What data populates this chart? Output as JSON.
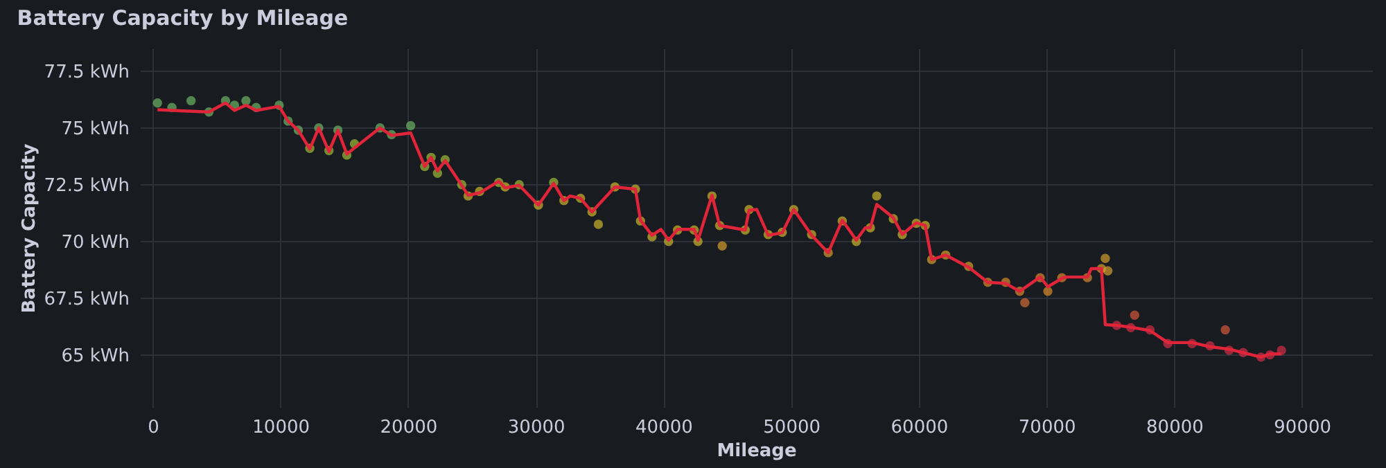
{
  "chart_data": {
    "type": "scatter",
    "title": "Battery Capacity by Mileage",
    "xlabel": "Mileage",
    "ylabel": "Battery Capacity",
    "xlim": [
      -1000,
      95500
    ],
    "ylim": [
      62.7,
      78.5
    ],
    "xticks": [
      0,
      10000,
      20000,
      30000,
      40000,
      50000,
      60000,
      70000,
      80000,
      90000
    ],
    "yticks": [
      {
        "value": 65,
        "label": "65 kWh"
      },
      {
        "value": 67.5,
        "label": "67.5 kWh"
      },
      {
        "value": 70,
        "label": "70 kWh"
      },
      {
        "value": 72.5,
        "label": "72.5 kWh"
      },
      {
        "value": 75,
        "label": "75 kWh"
      },
      {
        "value": 77.5,
        "label": "77.5 kWh"
      }
    ],
    "grid": true,
    "series": [
      {
        "marker": "circle",
        "x": [
          370,
          1500,
          3000,
          4400,
          5700,
          6400,
          7300,
          8100,
          9900,
          10600,
          11400,
          12300,
          13000,
          13800,
          14500,
          15200,
          15800,
          17800,
          18700,
          20200,
          21300,
          21800,
          22300,
          22900,
          24200,
          24700,
          25600,
          27100,
          27600,
          28700,
          30200,
          31400,
          32200,
          33500,
          34400,
          34900,
          36200,
          37800,
          38200,
          39100,
          40400,
          41100,
          42400,
          42700,
          43800,
          44400,
          44600,
          46400,
          46700,
          48200,
          49300,
          50200,
          51600,
          52900,
          54000,
          55100,
          56200,
          56700,
          58000,
          58700,
          59800,
          60500,
          61000,
          62100,
          63900,
          65400,
          66800,
          67900,
          68300,
          69500,
          70100,
          71200,
          73200,
          74300,
          74800,
          74600,
          75500,
          76600,
          76900,
          78100,
          79500,
          81400,
          82800,
          84000,
          84300,
          85400,
          86800,
          87500,
          88400
        ],
        "values": [
          76.1,
          75.9,
          76.2,
          75.7,
          76.2,
          76.0,
          76.2,
          75.9,
          76.0,
          75.3,
          74.9,
          74.1,
          75.0,
          74.0,
          74.9,
          73.8,
          74.3,
          75.0,
          74.7,
          75.1,
          73.3,
          73.7,
          73.0,
          73.6,
          72.5,
          72.0,
          72.2,
          72.6,
          72.4,
          72.5,
          71.6,
          72.6,
          71.8,
          71.9,
          71.3,
          70.75,
          72.4,
          72.3,
          70.9,
          70.2,
          70.0,
          70.5,
          70.5,
          70.0,
          72.0,
          70.7,
          69.8,
          70.5,
          71.4,
          70.3,
          70.4,
          71.4,
          70.3,
          69.5,
          70.9,
          70.0,
          70.6,
          72.0,
          71.0,
          70.3,
          70.8,
          70.7,
          69.2,
          69.4,
          68.9,
          68.2,
          68.2,
          67.8,
          67.3,
          68.4,
          67.8,
          68.4,
          68.4,
          68.8,
          68.7,
          69.25,
          66.3,
          66.2,
          66.75,
          66.1,
          65.5,
          65.5,
          65.4,
          66.1,
          65.2,
          65.1,
          64.9,
          65.0,
          65.2
        ],
        "colors": [
          "#73bf69",
          "#73bf69",
          "#73bf69",
          "#73bf69",
          "#73bf69",
          "#73bf69",
          "#73bf69",
          "#73bf69",
          "#73bf69",
          "#73bf69",
          "#73bf69",
          "#a8c83a",
          "#73bf69",
          "#a8c83a",
          "#73bf69",
          "#a8c83a",
          "#a8c83a",
          "#73bf69",
          "#73bf69",
          "#73bf69",
          "#a8c83a",
          "#a8c83a",
          "#a8c83a",
          "#a8c83a",
          "#a8c83a",
          "#d8c02e",
          "#d8c02e",
          "#a8c83a",
          "#d8c02e",
          "#a8c83a",
          "#d8c02e",
          "#a8c83a",
          "#d8c02e",
          "#d8c02e",
          "#d8c02e",
          "#d8c02e",
          "#d8c02e",
          "#d8c02e",
          "#d8c02e",
          "#d8c02e",
          "#d8c02e",
          "#d8c02e",
          "#d8c02e",
          "#d8c02e",
          "#d8c02e",
          "#d8c02e",
          "#e0a72e",
          "#d8c02e",
          "#d8c02e",
          "#d8c02e",
          "#d8c02e",
          "#d8c02e",
          "#d8c02e",
          "#e0a72e",
          "#d8c02e",
          "#d8c02e",
          "#d8c02e",
          "#d8c02e",
          "#d8c02e",
          "#d8c02e",
          "#d8c02e",
          "#d8c02e",
          "#e0a72e",
          "#e0a72e",
          "#e0a72e",
          "#e8902e",
          "#e8902e",
          "#e8902e",
          "#e0703a",
          "#e8902e",
          "#e8902e",
          "#e8902e",
          "#e8902e",
          "#e0a72e",
          "#e0a72e",
          "#e0a72e",
          "#e0304a",
          "#e0304a",
          "#e05a3c",
          "#e0304a",
          "#e0304a",
          "#e0304a",
          "#e0304a",
          "#e05a3c",
          "#e0304a",
          "#e0304a",
          "#e0304a",
          "#e0304a",
          "#e0304a"
        ]
      },
      {
        "type": "line",
        "color": "#e0253a",
        "line_style": "solid",
        "x": [
          370,
          4400,
          5700,
          6400,
          7300,
          8100,
          9900,
          10600,
          11400,
          12300,
          13000,
          13800,
          14500,
          15200,
          17800,
          18700,
          20200,
          21300,
          21800,
          22300,
          22900,
          24200,
          24700,
          25600,
          27100,
          27600,
          28700,
          30200,
          31400,
          32200,
          32700,
          33500,
          34400,
          36200,
          37800,
          38200,
          39100,
          39800,
          40400,
          41100,
          42400,
          42700,
          43800,
          44400,
          46400,
          46700,
          47300,
          48200,
          49300,
          50200,
          51600,
          52900,
          54000,
          54700,
          55100,
          55800,
          56200,
          56700,
          58000,
          58700,
          59800,
          60500,
          61000,
          62100,
          63900,
          65400,
          66800,
          67900,
          69500,
          70100,
          71200,
          71500,
          73200,
          73500,
          74300,
          74600,
          75500,
          76600,
          78100,
          79500,
          81400,
          82800,
          84300,
          85400,
          86800,
          87500,
          88400
        ],
        "values": [
          75.8,
          75.7,
          76.1,
          75.77,
          76.0,
          75.77,
          75.95,
          75.3,
          74.9,
          74.07,
          75.0,
          73.96,
          74.9,
          73.85,
          75.0,
          74.67,
          74.78,
          73.3,
          73.7,
          73.1,
          73.56,
          72.47,
          72.03,
          72.14,
          72.65,
          72.36,
          72.47,
          71.6,
          72.56,
          71.8,
          72.0,
          71.9,
          71.3,
          72.4,
          72.3,
          70.93,
          70.27,
          70.53,
          70.05,
          70.53,
          70.53,
          70.05,
          72.03,
          70.7,
          70.5,
          71.37,
          71.41,
          70.27,
          70.38,
          71.41,
          70.27,
          69.5,
          70.93,
          70.38,
          70.05,
          70.6,
          70.6,
          71.63,
          71.04,
          70.31,
          70.82,
          70.7,
          69.2,
          69.4,
          68.86,
          68.2,
          68.15,
          67.8,
          68.43,
          68.0,
          68.37,
          68.43,
          68.43,
          68.8,
          68.8,
          66.33,
          66.3,
          66.22,
          66.07,
          65.54,
          65.54,
          65.36,
          65.25,
          65.1,
          64.9,
          65.04,
          65.04
        ]
      }
    ]
  }
}
